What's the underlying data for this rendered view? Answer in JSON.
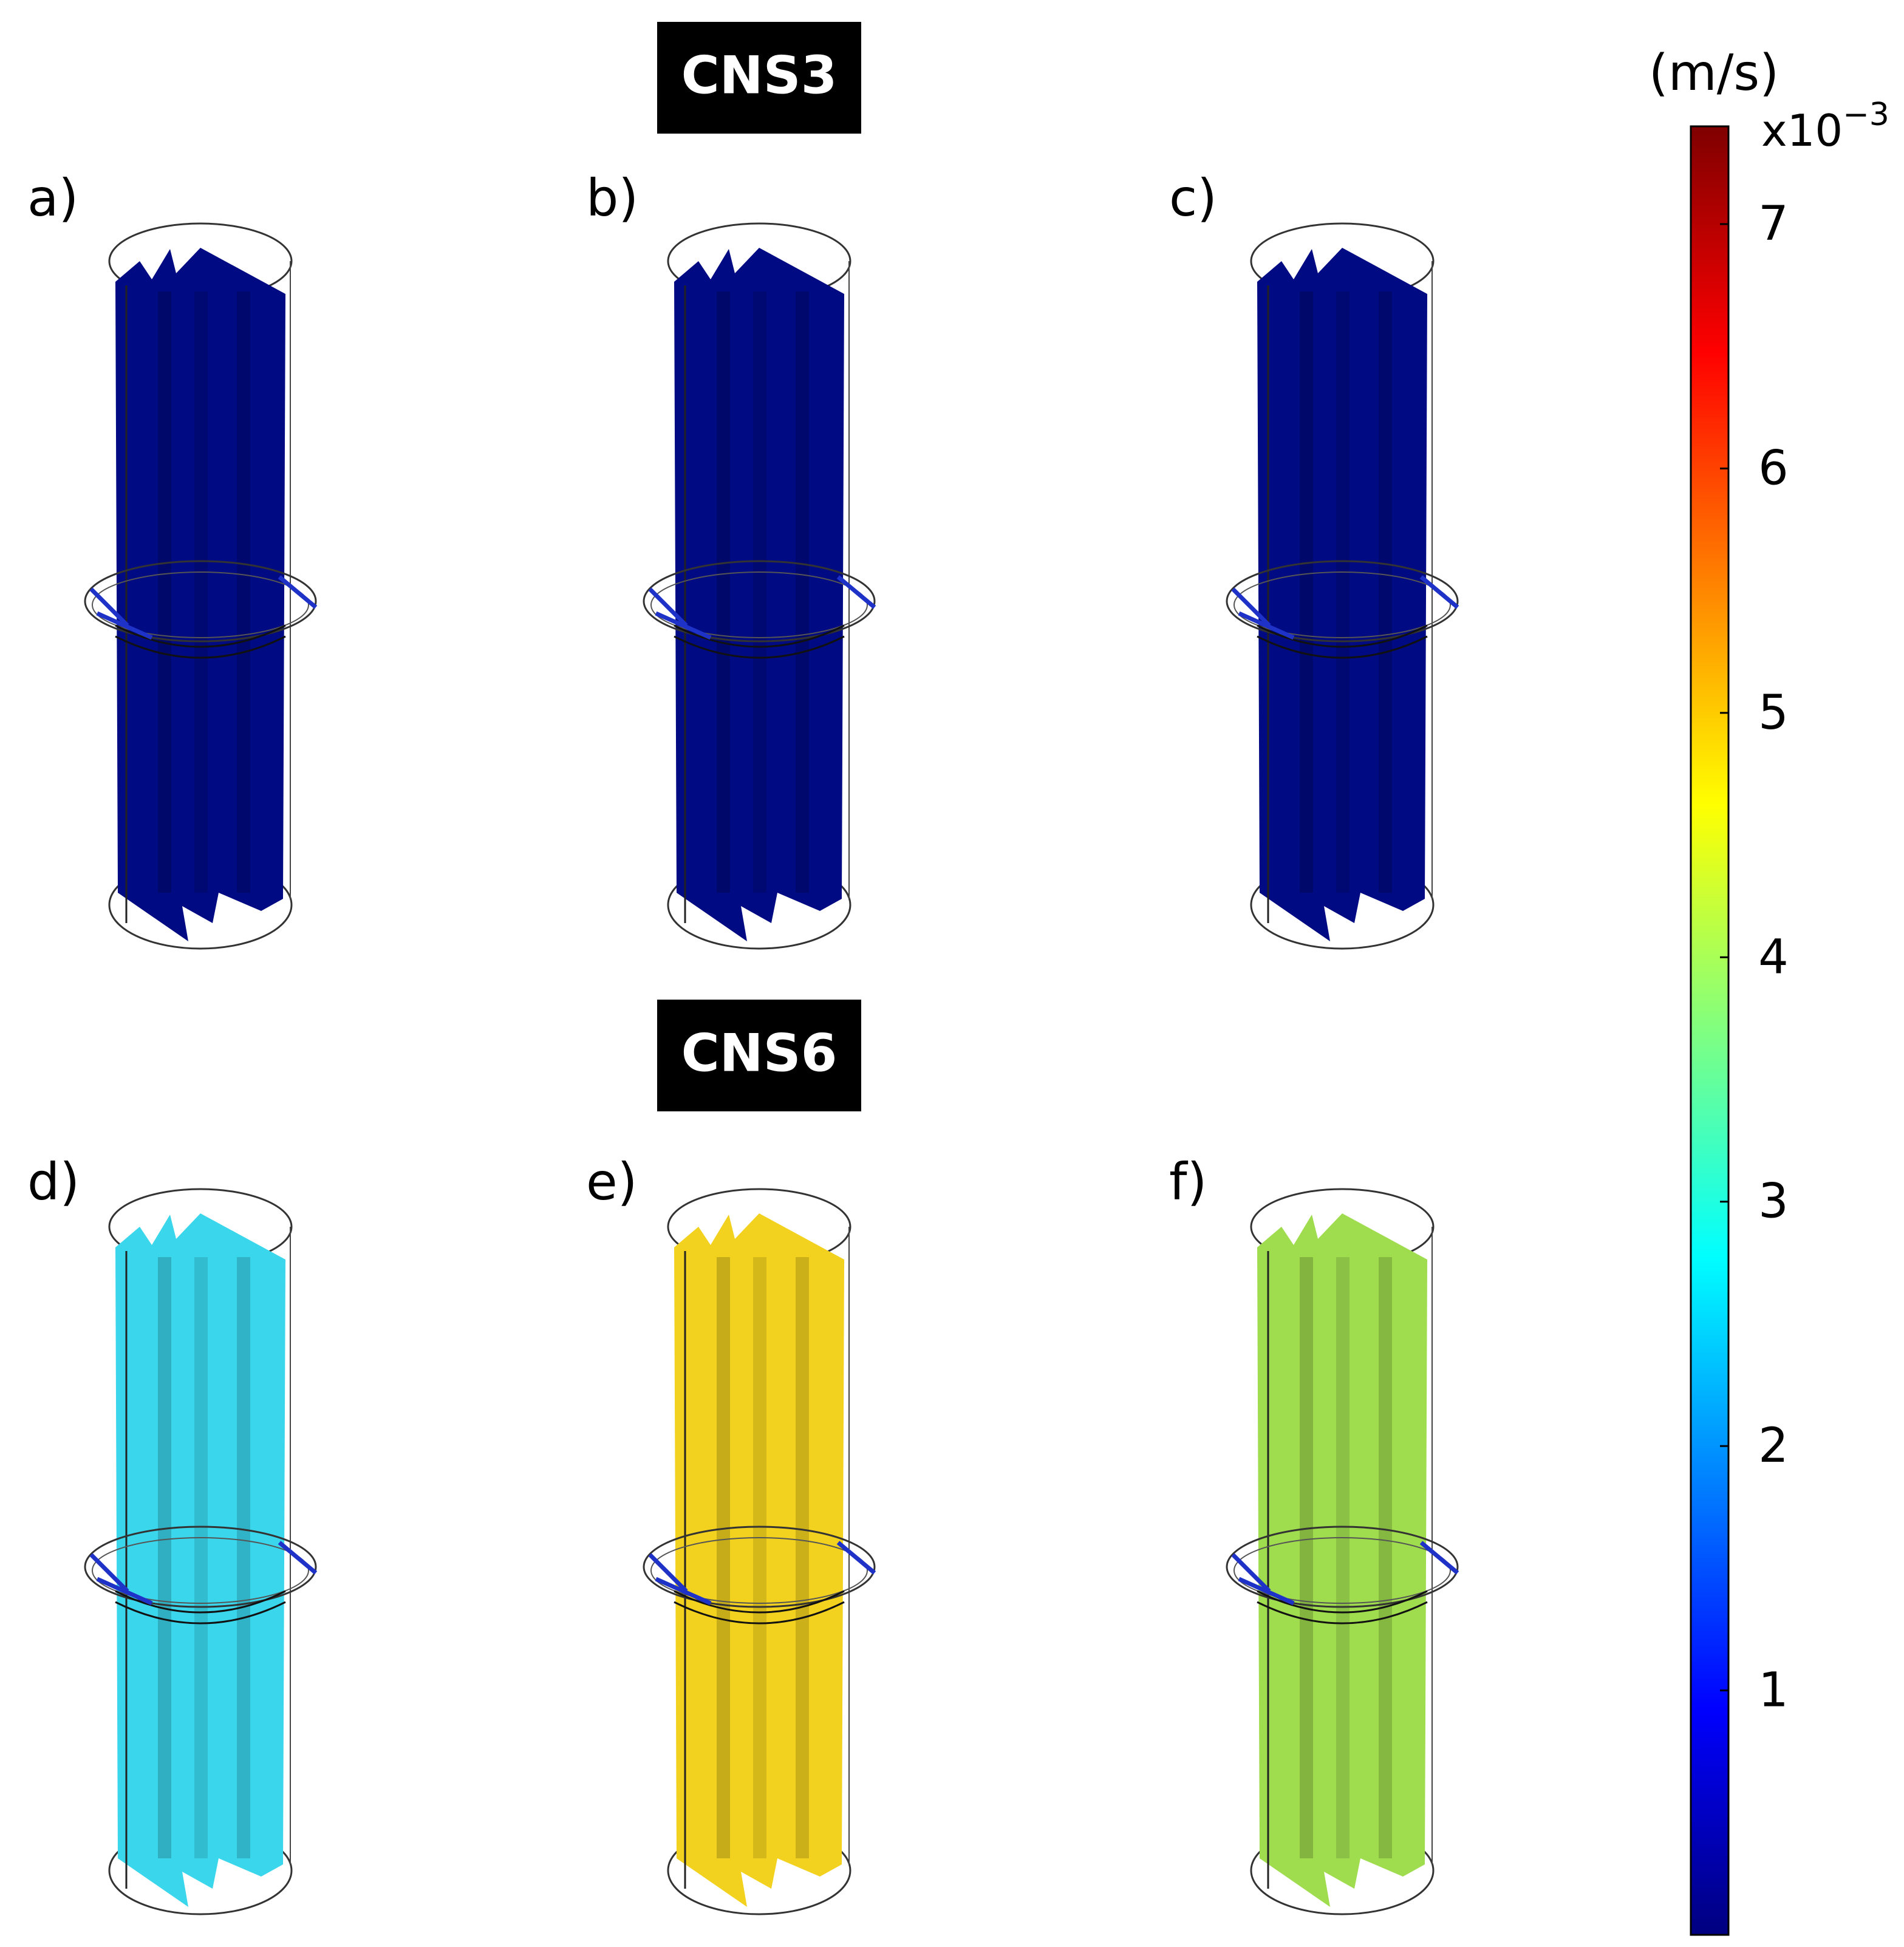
{
  "groups": [
    {
      "title": "CNS3",
      "panels": [
        {
          "label": "a)",
          "fill": "#000a82"
        },
        {
          "label": "b)",
          "fill": "#000a82"
        },
        {
          "label": "c)",
          "fill": "#000a82"
        }
      ]
    },
    {
      "title": "CNS6",
      "panels": [
        {
          "label": "d)",
          "fill": "#3ad6ec"
        },
        {
          "label": "e)",
          "fill": "#f2d21e"
        },
        {
          "label": "f)",
          "fill": "#9fdc4e"
        }
      ]
    }
  ],
  "colorbar": {
    "unit": "(m/s)",
    "multiplier": "x10",
    "exponent": "−3",
    "ticks": [
      "1",
      "2",
      "3",
      "4",
      "5",
      "6",
      "7"
    ],
    "colors": [
      "#00007f",
      "#0000ff",
      "#0080ff",
      "#00ffff",
      "#80ff80",
      "#ffff00",
      "#ff8000",
      "#ff0000",
      "#7f0000"
    ],
    "range": [
      0,
      7.4
    ]
  }
}
